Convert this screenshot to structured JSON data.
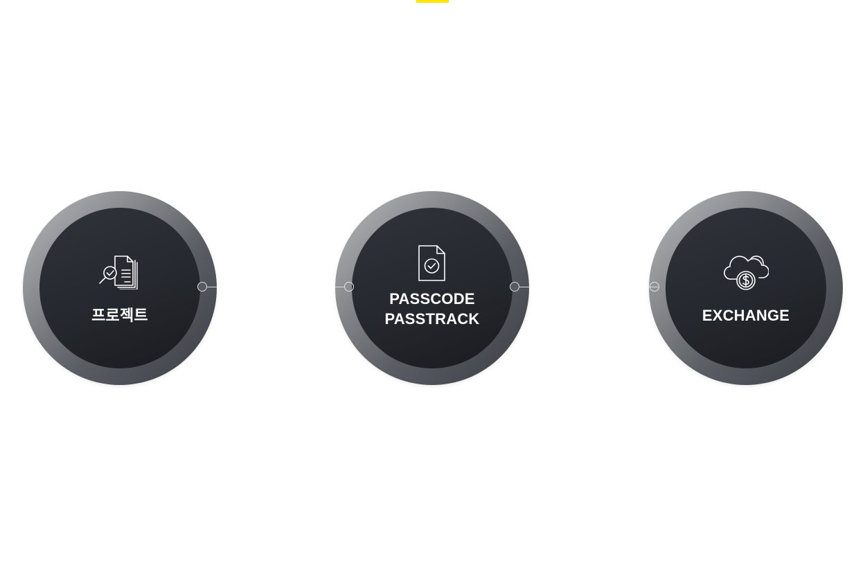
{
  "items": [
    {
      "label_lines": [
        "프로젝트"
      ],
      "icon": "document-search-icon"
    },
    {
      "label_lines": [
        "PASSCODE",
        "PASSTRACK"
      ],
      "icon": "document-check-icon"
    },
    {
      "label_lines": [
        "EXCHANGE"
      ],
      "icon": "cloud-dollar-icon"
    }
  ],
  "colors": {
    "accent": "#ffe600",
    "ring_light": "#b9babc",
    "ring_dark": "#3a3d44",
    "core": "#25282e",
    "text": "#ffffff"
  }
}
